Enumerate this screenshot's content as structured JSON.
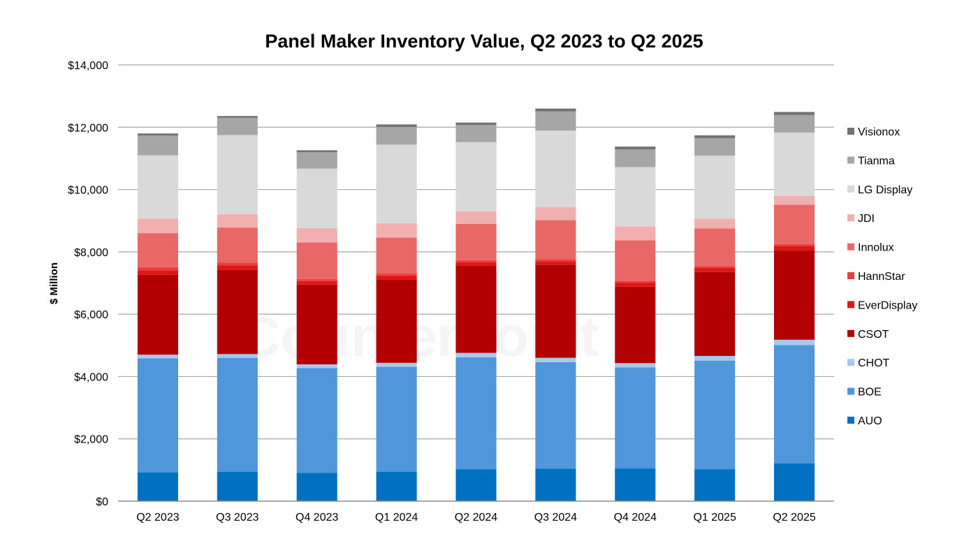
{
  "chart_data": {
    "type": "bar",
    "stacked": true,
    "title": "Panel Maker Inventory Value, Q2 2023 to Q2 2025",
    "xlabel": "",
    "ylabel": "$ Million",
    "ylim": [
      0,
      14000
    ],
    "yticks": [
      0,
      2000,
      4000,
      6000,
      8000,
      10000,
      12000,
      14000
    ],
    "ytick_labels": [
      "$0",
      "$2,000",
      "$4,000",
      "$6,000",
      "$8,000",
      "$10,000",
      "$12,000",
      "$14,000"
    ],
    "grid": "horizontal",
    "legend_position": "right",
    "watermark_text": "Counterpoint",
    "categories": [
      "Q2 2023",
      "Q3 2023",
      "Q4 2023",
      "Q1 2024",
      "Q2 2024",
      "Q3 2024",
      "Q4 2024",
      "Q1 2025",
      "Q2 2025"
    ],
    "series": [
      {
        "name": "AUO",
        "color": "#0070C0",
        "values": [
          920,
          940,
          910,
          940,
          1020,
          1040,
          1050,
          1020,
          1210
        ]
      },
      {
        "name": "BOE",
        "color": "#4F96DA",
        "values": [
          3660,
          3660,
          3360,
          3370,
          3600,
          3420,
          3240,
          3490,
          3800
        ]
      },
      {
        "name": "CHOT",
        "color": "#A6C9EC",
        "values": [
          120,
          120,
          120,
          130,
          140,
          140,
          140,
          150,
          170
        ]
      },
      {
        "name": "CSOT",
        "color": "#B30000",
        "values": [
          2560,
          2710,
          2560,
          2670,
          2790,
          2980,
          2450,
          2690,
          2860
        ]
      },
      {
        "name": "EverDisplay",
        "color": "#DE1616",
        "values": [
          150,
          130,
          110,
          130,
          110,
          120,
          130,
          140,
          150
        ]
      },
      {
        "name": "HannStar",
        "color": "#EE3B3B",
        "values": [
          100,
          90,
          70,
          70,
          70,
          60,
          60,
          50,
          60
        ]
      },
      {
        "name": "Innolux",
        "color": "#EA6767",
        "values": [
          1090,
          1130,
          1170,
          1150,
          1170,
          1260,
          1300,
          1210,
          1260
        ]
      },
      {
        "name": "JDI",
        "color": "#F2AFAF",
        "values": [
          470,
          430,
          460,
          460,
          400,
          420,
          450,
          310,
          280
        ]
      },
      {
        "name": "LG Display",
        "color": "#D9D9D9",
        "values": [
          2030,
          2540,
          1910,
          2520,
          2220,
          2450,
          1900,
          2030,
          2040
        ]
      },
      {
        "name": "Tianma",
        "color": "#A6A6A6",
        "values": [
          630,
          550,
          530,
          570,
          550,
          620,
          570,
          560,
          560
        ]
      },
      {
        "name": "Visionox",
        "color": "#737373",
        "values": [
          70,
          60,
          60,
          80,
          80,
          90,
          90,
          90,
          100
        ]
      }
    ]
  }
}
